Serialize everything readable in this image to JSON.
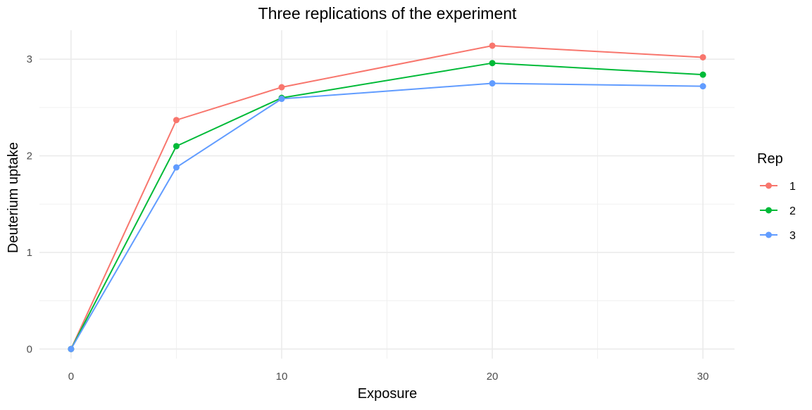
{
  "chart_data": {
    "type": "line",
    "title": "Three replications of the experiment",
    "xlabel": "Exposure",
    "ylabel": "Deuterium uptake",
    "x": [
      0,
      5,
      10,
      20,
      30
    ],
    "xlim": [
      -1.5,
      31.5
    ],
    "ylim": [
      -0.1,
      3.3
    ],
    "xticks": [
      0,
      10,
      20,
      30
    ],
    "xtick_labels": [
      "0",
      "10",
      "20",
      "30"
    ],
    "x_minor_ticks": [
      5,
      15,
      25
    ],
    "yticks": [
      0,
      1,
      2,
      3
    ],
    "ytick_labels": [
      "0",
      "1",
      "2",
      "3"
    ],
    "y_minor_ticks": [
      0.5,
      1.5,
      2.5
    ],
    "grid": true,
    "legend": {
      "title": "Rep",
      "position": "right"
    },
    "series": [
      {
        "name": "1",
        "color": "#F8766D",
        "values": [
          0,
          2.37,
          2.71,
          3.14,
          3.02
        ]
      },
      {
        "name": "2",
        "color": "#00BA38",
        "values": [
          0,
          2.1,
          2.6,
          2.96,
          2.84
        ]
      },
      {
        "name": "3",
        "color": "#619CFF",
        "values": [
          0,
          1.88,
          2.59,
          2.75,
          2.72
        ]
      }
    ]
  }
}
